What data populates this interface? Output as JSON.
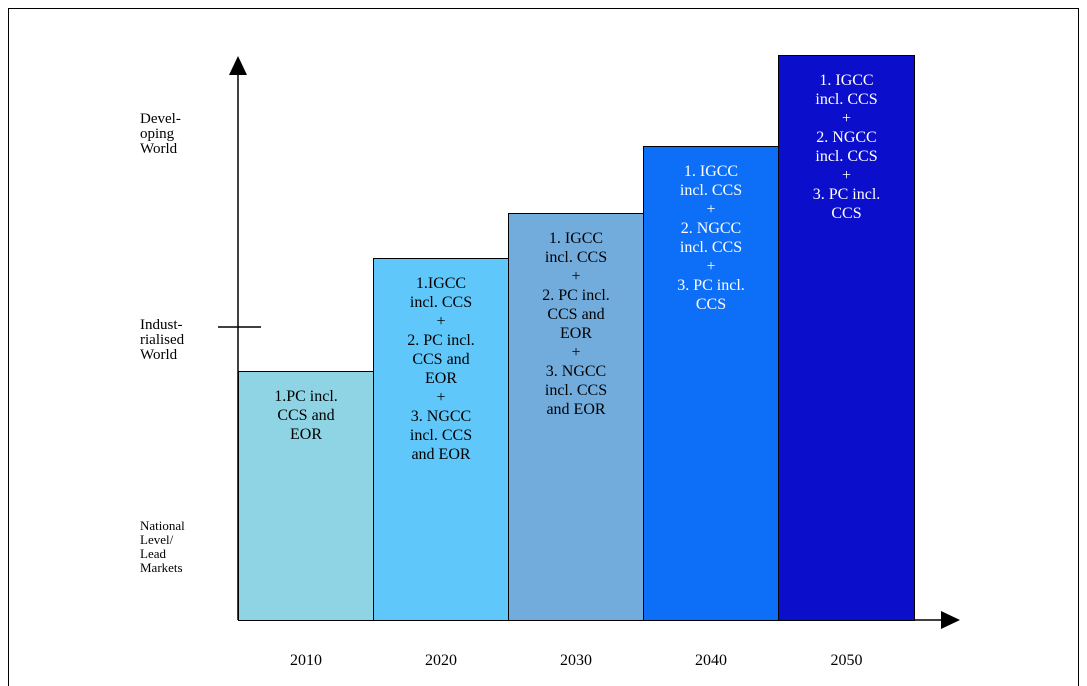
{
  "y_levels": [
    {
      "label": "Devel-\noping\nWorld"
    },
    {
      "label": "Indust-\nrialised\nWorld"
    },
    {
      "label": "National\nLevel/\nLead\nMarkets"
    }
  ],
  "steps": [
    {
      "year": "2010",
      "color": "#8FD4E4",
      "text_color": "#000000",
      "lines": [
        "1.PC incl.",
        "CCS and",
        "EOR"
      ]
    },
    {
      "year": "2020",
      "color": "#5FC7F9",
      "text_color": "#000000",
      "lines": [
        "1.IGCC",
        "incl. CCS",
        "+",
        "2. PC incl.",
        "CCS and",
        "EOR",
        "+",
        "3. NGCC",
        "incl. CCS",
        "and EOR"
      ]
    },
    {
      "year": "2030",
      "color": "#72ACDD",
      "text_color": "#000000",
      "lines": [
        "1. IGCC",
        "incl. CCS",
        "+",
        "2. PC incl.",
        "CCS and",
        "EOR",
        "+",
        "3. NGCC",
        "incl. CCS",
        "and EOR"
      ]
    },
    {
      "year": "2040",
      "color": "#0D6FF8",
      "text_color": "#ffffff",
      "lines": [
        "1. IGCC",
        "incl. CCS",
        "+",
        "2. NGCC",
        "incl. CCS",
        "+",
        "3. PC incl.",
        "CCS"
      ]
    },
    {
      "year": "2050",
      "color": "#0B0FCB",
      "text_color": "#ffffff",
      "lines": [
        "1. IGCC",
        "incl. CCS",
        "+",
        "2. NGCC",
        "incl. CCS",
        "+",
        "3. PC incl.",
        "CCS"
      ]
    }
  ]
}
